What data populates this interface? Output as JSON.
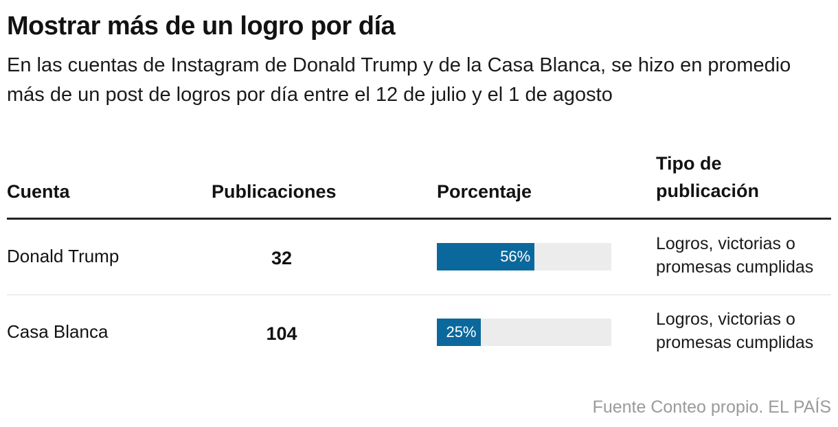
{
  "header": {
    "title": "Mostrar más de un logro por día",
    "subtitle": "En las cuentas de Instagram de Donald Trump y de la Casa Blanca, se hizo en promedio más de un post de logros por día entre el 12 de julio y el 1 de agosto"
  },
  "table": {
    "columns": {
      "account": "Cuenta",
      "posts": "Publicaciones",
      "percentage": "Porcentaje",
      "type": "Tipo de publicación"
    },
    "rows": [
      {
        "account": "Donald Trump",
        "posts": "32",
        "pct_label": "56%",
        "type": "Logros, victorias o promesas cumplidas"
      },
      {
        "account": "Casa Blanca",
        "posts": "104",
        "pct_label": "25%",
        "type": "Logros, victorias o promesas cumplidas"
      }
    ]
  },
  "footer": {
    "source": "Fuente Conteo propio. EL PAÍS"
  },
  "colors": {
    "bar_fill": "#0b689c",
    "bar_track": "#ececec",
    "rule": "#222222",
    "source_text": "#9a9a9a"
  },
  "chart_data": {
    "type": "table",
    "title": "Mostrar más de un logro por día",
    "subtitle": "En las cuentas de Instagram de Donald Trump y de la Casa Blanca, se hizo en promedio más de un post de logros por día entre el 12 de julio y el 1 de agosto",
    "columns": [
      "Cuenta",
      "Publicaciones",
      "Porcentaje",
      "Tipo de publicación"
    ],
    "categories": [
      "Donald Trump",
      "Casa Blanca"
    ],
    "series": [
      {
        "name": "Publicaciones",
        "values": [
          32,
          104
        ]
      },
      {
        "name": "Porcentaje",
        "values": [
          56,
          25
        ]
      }
    ],
    "percentage_range": [
      0,
      100
    ],
    "source": "Fuente Conteo propio. EL PAÍS"
  }
}
